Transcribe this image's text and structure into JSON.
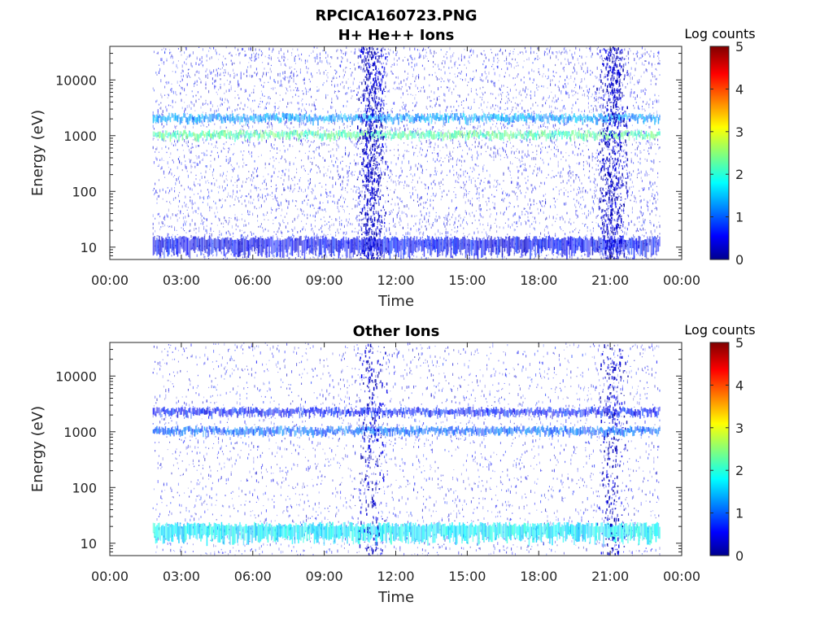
{
  "figure": {
    "title_line1": "RPCICA160723.PNG"
  },
  "colors": {
    "axis": "#262626",
    "colormap": "jet"
  },
  "chart_data": [
    {
      "type": "heatmap",
      "title": "H+ He++ Ions",
      "xlabel": "Time",
      "ylabel": "Energy (eV)",
      "x_ticks": [
        "00:00",
        "03:00",
        "06:00",
        "09:00",
        "12:00",
        "15:00",
        "18:00",
        "21:00",
        "00:00"
      ],
      "y_ticks": [
        "10",
        "100",
        "1000",
        "10000"
      ],
      "y_scale": "log",
      "ylim": [
        6,
        40000
      ],
      "xlim_hours": [
        0,
        24
      ],
      "data_start_hour": 1.8,
      "data_end_hour": 23.1,
      "colorbar": {
        "label": "Log counts",
        "ticks": [
          "0",
          "1",
          "2",
          "3",
          "4",
          "5"
        ],
        "range": [
          0,
          5
        ]
      },
      "features": [
        {
          "kind": "band",
          "energy_eV": 1000,
          "log_counts": 2.3
        },
        {
          "kind": "band",
          "energy_eV": 2000,
          "log_counts": 1.4
        },
        {
          "kind": "band",
          "energy_eV": 10,
          "log_counts": 0.6
        },
        {
          "kind": "burst",
          "time_hour": 11.0,
          "log_counts": 0.2
        },
        {
          "kind": "burst",
          "time_hour": 21.1,
          "log_counts": 0.2
        }
      ]
    },
    {
      "type": "heatmap",
      "title": "Other Ions",
      "xlabel": "Time",
      "ylabel": "Energy (eV)",
      "x_ticks": [
        "00:00",
        "03:00",
        "06:00",
        "09:00",
        "12:00",
        "15:00",
        "18:00",
        "21:00",
        "00:00"
      ],
      "y_ticks": [
        "10",
        "100",
        "1000",
        "10000"
      ],
      "y_scale": "log",
      "ylim": [
        6,
        40000
      ],
      "xlim_hours": [
        0,
        24
      ],
      "data_start_hour": 1.8,
      "data_end_hour": 23.1,
      "colorbar": {
        "label": "Log counts",
        "ticks": [
          "0",
          "1",
          "2",
          "3",
          "4",
          "5"
        ],
        "range": [
          0,
          5
        ]
      },
      "features": [
        {
          "kind": "band",
          "energy_eV": 1000,
          "log_counts": 1.1
        },
        {
          "kind": "band",
          "energy_eV": 2200,
          "log_counts": 0.7
        },
        {
          "kind": "band",
          "energy_eV": 15,
          "log_counts": 1.8
        },
        {
          "kind": "burst",
          "time_hour": 11.0,
          "log_counts": 0.3
        },
        {
          "kind": "burst",
          "time_hour": 21.1,
          "log_counts": 0.3
        }
      ]
    }
  ]
}
